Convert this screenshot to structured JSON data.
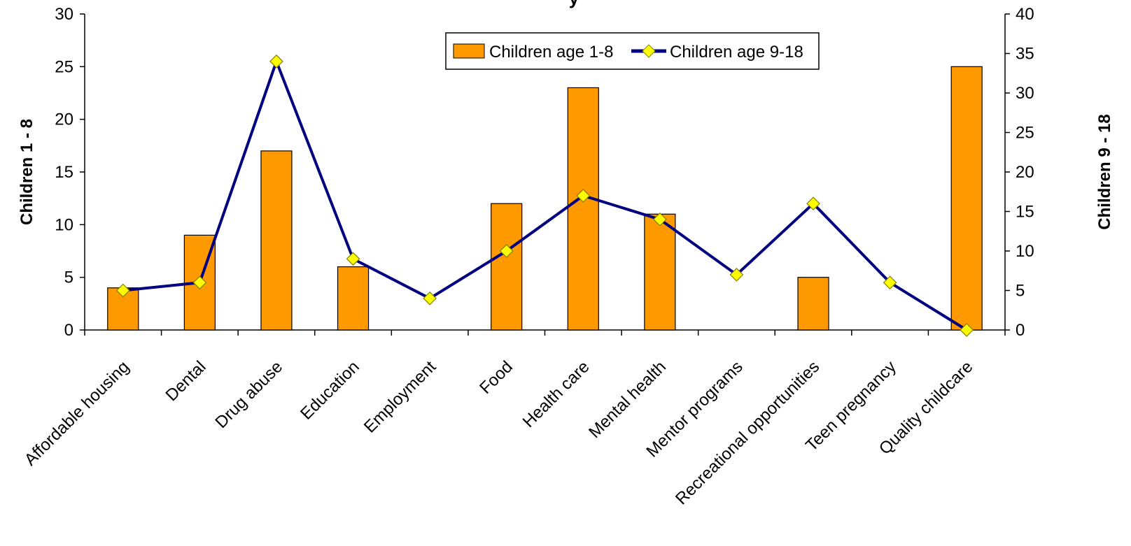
{
  "chart_data": {
    "type": "bar",
    "title": "y",
    "categories": [
      "Affordable housing",
      "Dental",
      "Drug abuse",
      "Education",
      "Employment",
      "Food",
      "Health care",
      "Mental health",
      "Mentor programs",
      "Recreational opportunities",
      "Teen pregnancy",
      "Quality childcare"
    ],
    "series": [
      {
        "name": "Children age 1-8",
        "type": "bar",
        "axis": "left",
        "color": "#ff9900",
        "values": [
          4,
          9,
          17,
          6,
          0,
          12,
          23,
          11,
          0,
          5,
          0,
          25
        ]
      },
      {
        "name": "Children age 9-18",
        "type": "line",
        "axis": "right",
        "color": "#000080",
        "marker_color": "#ffff00",
        "values": [
          5,
          6,
          34,
          9,
          4,
          10,
          17,
          14,
          7,
          16,
          6,
          0
        ]
      }
    ],
    "ylabel": "Children 1 - 8",
    "ylim": [
      0,
      30
    ],
    "yticks": [
      "0",
      "5",
      "10",
      "15",
      "20",
      "25",
      "30"
    ],
    "y2label": "Children 9 - 18",
    "y2lim": [
      0,
      40
    ],
    "y2ticks": [
      "0",
      "5",
      "10",
      "15",
      "20",
      "25",
      "30",
      "35",
      "40"
    ],
    "legend_position": "top-center",
    "grid": false
  }
}
